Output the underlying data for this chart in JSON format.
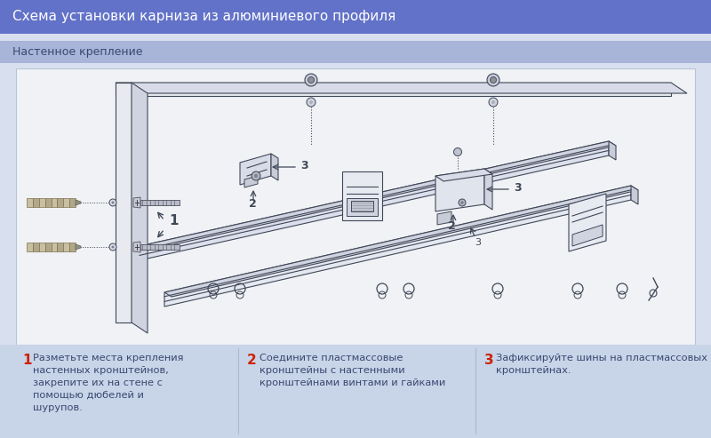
{
  "title": "Схема установки карниза из алюминиевого профиля",
  "subtitle": "Настенное крепление",
  "title_bg": "#6272c8",
  "subtitle_bg": "#a8b4d8",
  "main_bg": "#d8e0f0",
  "diagram_bg": "#f0f2f5",
  "bottom_bg": "#c8d4e8",
  "title_color": "#ffffff",
  "subtitle_color": "#3a4870",
  "step_number_color": "#cc2200",
  "step_text_color": "#3a4870",
  "line_color": "#404858",
  "step1_num": "1",
  "step1_text": "Разметьте места крепления\nнастенных кронштейнов,\nзакрепите их на стене с\nпомощью дюбелей и\nшурупов.",
  "step2_num": "2",
  "step2_text": "Соедините пластмассовые\nкронштейны с настенными\nкронштейнами винтами и гайками",
  "step3_num": "3",
  "step3_text": "Зафиксируйте шины на пластмассовых\nкронштейнах."
}
